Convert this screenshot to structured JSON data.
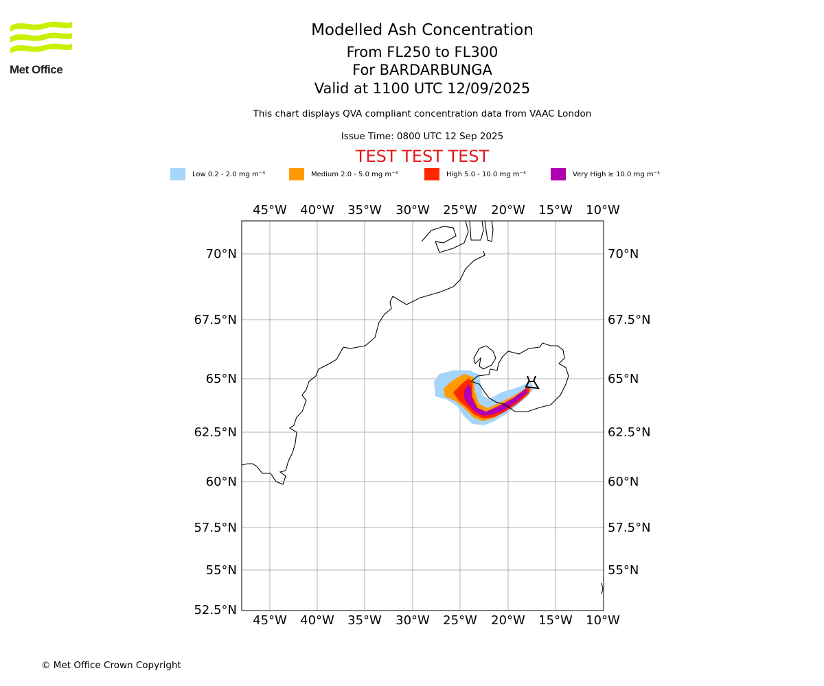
{
  "header": {
    "logo_text": "Met Office",
    "title": "Modelled Ash Concentration",
    "subtitle_lines": [
      "From FL250 to FL300",
      "For BARDARBUNGA",
      "Valid at 1100 UTC 12/09/2025"
    ],
    "note": "This chart displays QVA compliant concentration data from VAAC London",
    "issue_time": "Issue Time: 0800 UTC 12 Sep 2025",
    "test_banner": "TEST TEST TEST"
  },
  "legend": [
    {
      "label": "Low 0.2 - 2.0 mg m⁻³",
      "color": "#a6d5fa"
    },
    {
      "label": "Medium 2.0 - 5.0 mg m⁻³",
      "color": "#ff9a00"
    },
    {
      "label": "High 5.0 - 10.0 mg m⁻³",
      "color": "#ff2800"
    },
    {
      "label": "Very High ≥ 10.0 mg m⁻³",
      "color": "#b000b0"
    }
  ],
  "map": {
    "lon_ticks": [
      "45°W",
      "40°W",
      "35°W",
      "30°W",
      "25°W",
      "20°W",
      "15°W",
      "10°W"
    ],
    "lat_ticks": [
      "70°N",
      "67.5°N",
      "65°N",
      "62.5°N",
      "60°N",
      "57.5°N",
      "55°N",
      "52.5°N"
    ],
    "volcano_icon": "volcano-icon",
    "gridline_color": "#b0b0b0"
  },
  "footer": {
    "copyright": "© Met Office Crown Copyright"
  }
}
